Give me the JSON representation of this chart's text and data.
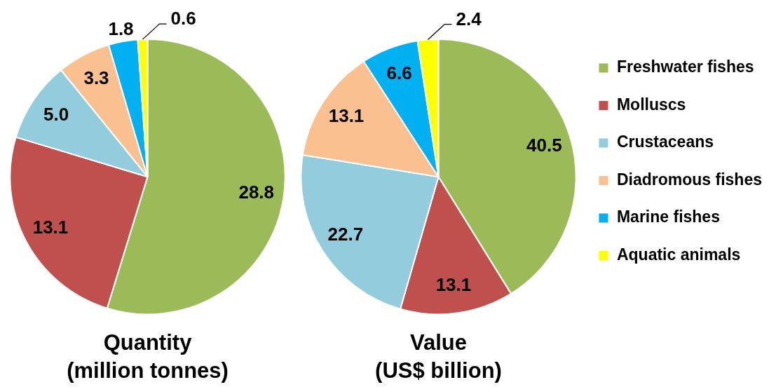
{
  "chart_data": [
    {
      "type": "pie",
      "title": "Quantity\n(million tonnes)",
      "categories": [
        null,
        null,
        null,
        null,
        null,
        null
      ],
      "values": [
        28.8,
        13.1,
        5.0,
        3.3,
        1.8,
        0.6
      ],
      "colors": [
        "#9bbb59",
        "#c0504d",
        "#93cddd",
        "#fac090",
        "#00b0f0",
        "#ffff00"
      ],
      "value_labels": [
        "28.8",
        "13.1",
        "5.0",
        "3.3",
        "1.8",
        "0.6"
      ],
      "legend": false
    },
    {
      "type": "pie",
      "title": "Value\n(US$ billion)",
      "categories": [
        "Freshwater fishes",
        "Molluscs",
        "Crustaceans",
        "Diadromous fishes",
        "Marine fishes",
        "Aquatic animals"
      ],
      "values": [
        40.5,
        13.1,
        22.7,
        13.1,
        6.6,
        2.4
      ],
      "colors": [
        "#9bbb59",
        "#c0504d",
        "#93cddd",
        "#fac090",
        "#00b0f0",
        "#ffff00"
      ],
      "data_labels": true,
      "legend": "right"
    }
  ]
}
